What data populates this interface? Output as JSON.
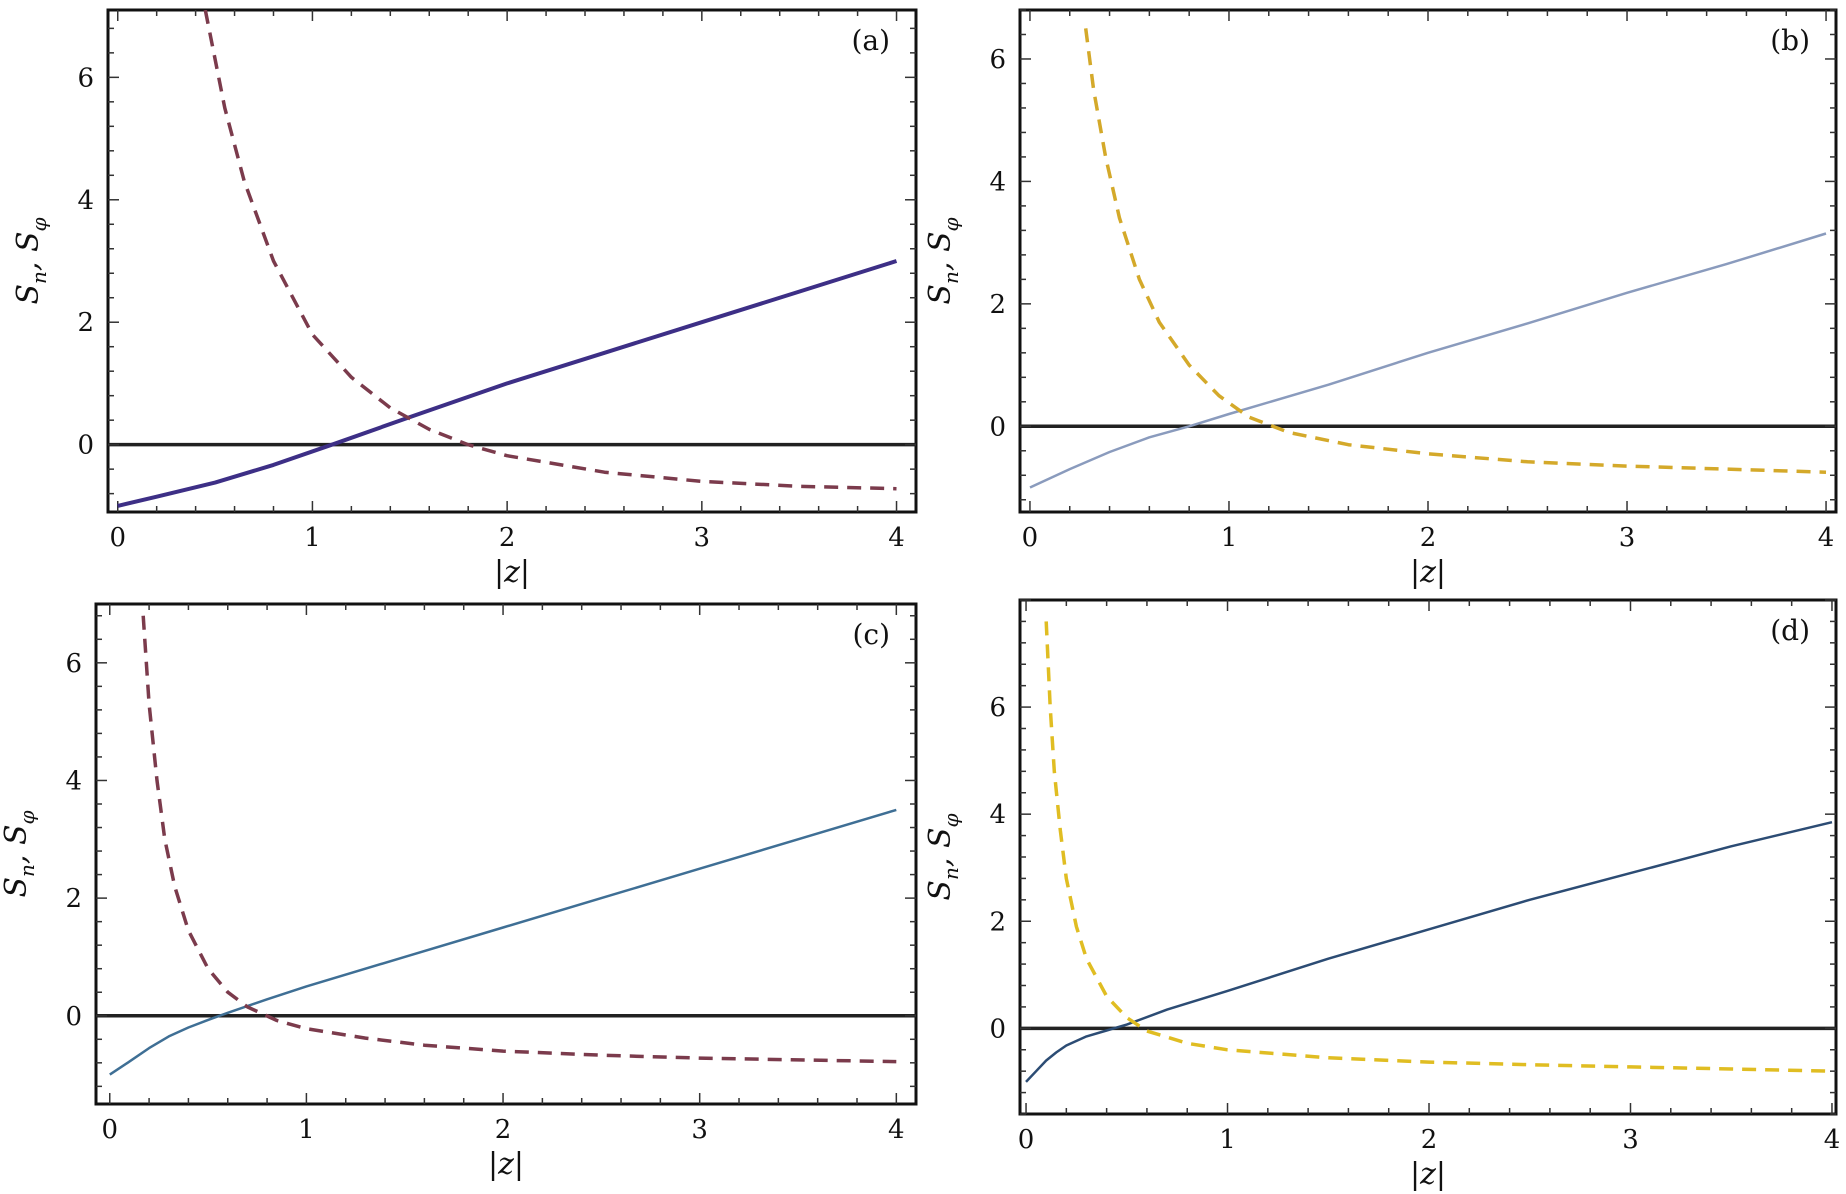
{
  "figure": {
    "title": ""
  },
  "chart_data": [
    {
      "type": "line",
      "panel_label": "(a)",
      "xlabel": "|z|",
      "ylabel": "S_n, S_φ",
      "ylabel_parts": {
        "s1": "S",
        "sub1": "n",
        "sep": ", ",
        "s2": "S",
        "sub2": "φ"
      },
      "xlim": [
        -0.05,
        4.1
      ],
      "ylim": [
        -1.1,
        7.1
      ],
      "xticks": [
        0,
        1,
        2,
        3,
        4
      ],
      "yticks": [
        0,
        2,
        4,
        6
      ],
      "zero_line": true,
      "series": [
        {
          "name": "S_n (solid)",
          "style": "solid",
          "color": "#3d2f86",
          "width": 4,
          "x": [
            0.0,
            0.2,
            0.5,
            0.8,
            1.1,
            1.5,
            2.0,
            2.5,
            3.0,
            3.5,
            4.0
          ],
          "y": [
            -1.0,
            -0.85,
            -0.62,
            -0.33,
            0.0,
            0.45,
            1.0,
            1.5,
            2.0,
            2.5,
            3.0
          ]
        },
        {
          "name": "S_φ (dashed)",
          "style": "dashed",
          "color": "#7b3b4c",
          "width": 3.5,
          "x": [
            0.45,
            0.55,
            0.65,
            0.8,
            1.0,
            1.2,
            1.4,
            1.6,
            1.8,
            2.0,
            2.5,
            3.0,
            3.5,
            4.0
          ],
          "y": [
            7.1,
            5.5,
            4.3,
            3.0,
            1.8,
            1.1,
            0.6,
            0.25,
            0.0,
            -0.18,
            -0.45,
            -0.6,
            -0.68,
            -0.72
          ]
        }
      ]
    },
    {
      "type": "line",
      "panel_label": "(b)",
      "xlabel": "|z|",
      "ylabel": "S_n, S_φ",
      "ylabel_parts": {
        "s1": "S",
        "sub1": "n",
        "sep": ", ",
        "s2": "S",
        "sub2": "φ"
      },
      "xlim": [
        -0.05,
        4.05
      ],
      "ylim": [
        -1.4,
        6.8
      ],
      "xticks": [
        0,
        1,
        2,
        3,
        4
      ],
      "yticks": [
        0,
        2,
        4,
        6
      ],
      "zero_line": true,
      "series": [
        {
          "name": "S_n (solid)",
          "style": "solid",
          "color": "#8a9bbd",
          "width": 2.5,
          "x": [
            0.0,
            0.2,
            0.4,
            0.6,
            0.8,
            1.0,
            1.5,
            2.0,
            2.5,
            3.0,
            3.5,
            4.0
          ],
          "y": [
            -1.0,
            -0.7,
            -0.42,
            -0.18,
            0.0,
            0.2,
            0.68,
            1.2,
            1.68,
            2.18,
            2.65,
            3.15
          ]
        },
        {
          "name": "S_φ (dashed)",
          "style": "dashed",
          "color": "#d4a92a",
          "width": 3.5,
          "x": [
            0.28,
            0.32,
            0.38,
            0.45,
            0.55,
            0.65,
            0.8,
            0.95,
            1.1,
            1.3,
            1.6,
            2.0,
            2.5,
            3.0,
            3.5,
            4.0
          ],
          "y": [
            6.5,
            5.5,
            4.4,
            3.4,
            2.4,
            1.7,
            1.0,
            0.5,
            0.15,
            -0.1,
            -0.3,
            -0.45,
            -0.58,
            -0.65,
            -0.7,
            -0.75
          ]
        }
      ]
    },
    {
      "type": "line",
      "panel_label": "(c)",
      "xlabel": "|z|",
      "ylabel": "S_n, S_φ",
      "ylabel_parts": {
        "s1": "S",
        "sub1": "n",
        "sep": ", ",
        "s2": "S",
        "sub2": "φ"
      },
      "xlim": [
        -0.07,
        4.1
      ],
      "ylim": [
        -1.5,
        7.0
      ],
      "xticks": [
        0,
        1,
        2,
        3,
        4
      ],
      "yticks": [
        0,
        2,
        4,
        6
      ],
      "zero_line": true,
      "series": [
        {
          "name": "S_n (solid)",
          "style": "solid",
          "color": "#3f6f95",
          "width": 2.5,
          "x": [
            0.0,
            0.1,
            0.2,
            0.3,
            0.4,
            0.5,
            0.6,
            0.8,
            1.0,
            1.5,
            2.0,
            2.5,
            3.0,
            3.5,
            4.0
          ],
          "y": [
            -1.0,
            -0.78,
            -0.55,
            -0.35,
            -0.2,
            -0.07,
            0.05,
            0.28,
            0.5,
            1.0,
            1.5,
            2.0,
            2.5,
            3.0,
            3.5
          ]
        },
        {
          "name": "S_φ (dashed)",
          "style": "dashed",
          "color": "#7b3b4c",
          "width": 3.5,
          "x": [
            0.17,
            0.2,
            0.24,
            0.28,
            0.33,
            0.4,
            0.5,
            0.6,
            0.7,
            0.85,
            1.0,
            1.3,
            1.6,
            2.0,
            2.5,
            3.0,
            3.5,
            4.0
          ],
          "y": [
            6.8,
            5.3,
            4.0,
            3.0,
            2.2,
            1.45,
            0.8,
            0.4,
            0.15,
            -0.08,
            -0.22,
            -0.38,
            -0.5,
            -0.6,
            -0.67,
            -0.72,
            -0.75,
            -0.78
          ]
        }
      ]
    },
    {
      "type": "line",
      "panel_label": "(d)",
      "xlabel": "|z|",
      "ylabel": "S_n, S_φ",
      "ylabel_parts": {
        "s1": "S",
        "sub1": "n",
        "sep": ", ",
        "s2": "S",
        "sub2": "φ"
      },
      "xlim": [
        -0.03,
        4.02
      ],
      "ylim": [
        -1.6,
        8.0
      ],
      "xticks": [
        0,
        1,
        2,
        3,
        4
      ],
      "yticks": [
        0,
        2,
        4,
        6
      ],
      "zero_line": true,
      "series": [
        {
          "name": "S_n (solid)",
          "style": "solid",
          "color": "#2c4c74",
          "width": 2.5,
          "x": [
            0.0,
            0.05,
            0.1,
            0.15,
            0.2,
            0.3,
            0.4,
            0.5,
            0.7,
            1.0,
            1.5,
            2.0,
            2.5,
            3.0,
            3.5,
            4.0
          ],
          "y": [
            -1.0,
            -0.8,
            -0.6,
            -0.45,
            -0.32,
            -0.15,
            -0.04,
            0.07,
            0.35,
            0.7,
            1.3,
            1.85,
            2.4,
            2.9,
            3.4,
            3.85
          ]
        },
        {
          "name": "S_φ (dashed)",
          "style": "dashed",
          "color": "#e0bd22",
          "width": 3.5,
          "x": [
            0.1,
            0.12,
            0.14,
            0.17,
            0.2,
            0.25,
            0.3,
            0.4,
            0.5,
            0.6,
            0.8,
            1.0,
            1.5,
            2.0,
            2.5,
            3.0,
            3.5,
            4.0
          ],
          "y": [
            7.6,
            6.0,
            4.8,
            3.7,
            2.8,
            1.9,
            1.3,
            0.6,
            0.2,
            -0.05,
            -0.28,
            -0.4,
            -0.55,
            -0.63,
            -0.68,
            -0.72,
            -0.76,
            -0.8
          ]
        }
      ]
    }
  ]
}
